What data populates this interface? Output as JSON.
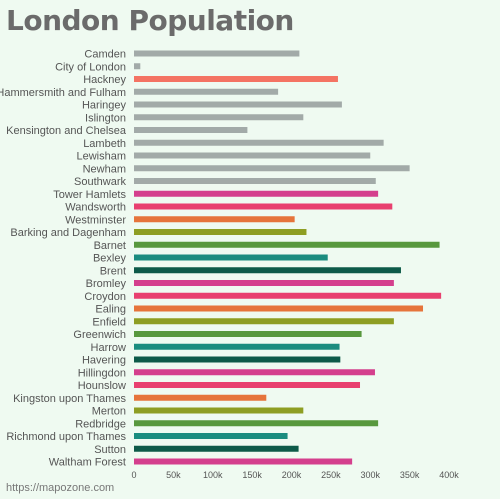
{
  "footer": "https://mapozone.com",
  "chart_data": {
    "type": "bar",
    "orientation": "horizontal",
    "title": "London Population",
    "xlabel": "",
    "ylabel": "",
    "xlim": [
      0,
      400000
    ],
    "grid": false,
    "legend": "none",
    "x_ticks": [
      {
        "value": 0,
        "label": "0"
      },
      {
        "value": 50000,
        "label": "50k"
      },
      {
        "value": 100000,
        "label": "100k"
      },
      {
        "value": 150000,
        "label": "150k"
      },
      {
        "value": 200000,
        "label": "200k"
      },
      {
        "value": 250000,
        "label": "250k"
      },
      {
        "value": 300000,
        "label": "300k"
      },
      {
        "value": 350000,
        "label": "350k"
      },
      {
        "value": 400000,
        "label": "400k"
      }
    ],
    "categories": [
      "Camden",
      "City of London",
      "Hackney",
      "Hammersmith and Fulham",
      "Haringey",
      "Islington",
      "Kensington and Chelsea",
      "Lambeth",
      "Lewisham",
      "Newham",
      "Southwark",
      "Tower Hamlets",
      "Wandsworth",
      "Westminster",
      "Barking and Dagenham",
      "Barnet",
      "Bexley",
      "Brent",
      "Bromley",
      "Croydon",
      "Ealing",
      "Enfield",
      "Greenwich",
      "Harrow",
      "Havering",
      "Hillingdon",
      "Hounslow",
      "Kingston upon Thames",
      "Merton",
      "Redbridge",
      "Richmond upon Thames",
      "Sutton",
      "Waltham Forest"
    ],
    "values": [
      210000,
      8000,
      259000,
      183000,
      264000,
      215000,
      144000,
      317000,
      300000,
      350000,
      307000,
      310000,
      328000,
      204000,
      219000,
      388000,
      246000,
      339000,
      330000,
      390000,
      367000,
      330000,
      289000,
      261000,
      262000,
      306000,
      287000,
      168000,
      215000,
      310000,
      195000,
      209000,
      277000
    ],
    "colors": [
      "#a2aaa8",
      "#a2aaa8",
      "#f47363",
      "#a2aaa8",
      "#a2aaa8",
      "#a2aaa8",
      "#a2aaa8",
      "#a2aaa8",
      "#a2aaa8",
      "#a2aaa8",
      "#a2aaa8",
      "#d43f8d",
      "#e8406f",
      "#e6743b",
      "#8e9e23",
      "#58983e",
      "#1b8c7f",
      "#0d5a49",
      "#d43f8d",
      "#e8406f",
      "#e6743b",
      "#8e9e23",
      "#58983e",
      "#1b8c7f",
      "#0d5a49",
      "#d43f8d",
      "#e8406f",
      "#e6743b",
      "#8e9e23",
      "#58983e",
      "#1b8c7f",
      "#0d5a49",
      "#d43f8d"
    ]
  }
}
